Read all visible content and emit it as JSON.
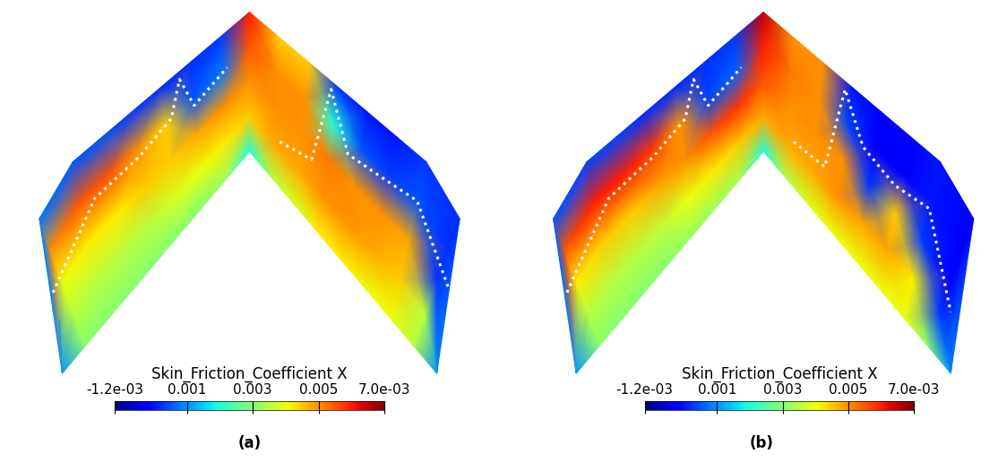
{
  "chart_data": [
    {
      "type": "heatmap",
      "caption": "(a)",
      "colorbar": {
        "label": "Skin_Friction_Coefficient X",
        "range": [
          -0.0012,
          0.007
        ],
        "ticks": [
          {
            "value": -0.0012,
            "label": "-1.2e-03"
          },
          0.001,
          0.003,
          0.005,
          {
            "value": 0.007,
            "label": "7.0e-03"
          }
        ]
      },
      "span": [
        -1,
        -0.875,
        -0.75,
        -0.625,
        -0.5,
        -0.375,
        -0.25,
        -0.125,
        0,
        0.125,
        0.25,
        0.375,
        0.5,
        0.625,
        0.75,
        0.875,
        1
      ],
      "chord": [
        0,
        0.25,
        0.5,
        0.75,
        1
      ],
      "cells": [
        [
          0.001,
          0.001,
          0.001,
          0.001,
          0.001
        ],
        [
          0.0008,
          0.005,
          0.004,
          0.0035,
          0.003
        ],
        [
          0.0005,
          0.0055,
          0.0042,
          0.0035,
          0.003
        ],
        [
          0.0005,
          0.0055,
          0.0042,
          0.0035,
          0.003
        ],
        [
          0.0003,
          0.005,
          0.0045,
          0.0035,
          0.003
        ],
        [
          0.0002,
          0.0045,
          0.0045,
          0.0038,
          0.003
        ],
        [
          0.0002,
          0.0005,
          0.0048,
          0.004,
          0.003
        ],
        [
          0.0003,
          0.0008,
          0.005,
          0.0042,
          0.0032
        ],
        [
          0.006,
          0.0055,
          0.005,
          0.0045,
          0.002
        ],
        [
          0.0045,
          0.005,
          0.005,
          0.0048,
          0.0035
        ],
        [
          0.0045,
          0.005,
          0.005,
          0.0048,
          0.0038
        ],
        [
          0.0003,
          0.002,
          0.0052,
          0.005,
          0.0042
        ],
        [
          0.0,
          0.0005,
          0.005,
          0.005,
          0.0042
        ],
        [
          0.0,
          0.0003,
          0.005,
          0.0048,
          0.004
        ],
        [
          0.0003,
          0.0005,
          0.0048,
          0.0045,
          0.004
        ],
        [
          0.0002,
          0.0002,
          0.0003,
          0.0035,
          0.0035
        ],
        [
          0.001,
          0.001,
          0.001,
          0.001,
          0.001
        ]
      ],
      "transition_lines": [
        [
          [
            -0.9,
            0.4
          ],
          [
            -0.7,
            0.3
          ],
          [
            -0.5,
            0.3
          ],
          [
            -0.35,
            0.25
          ],
          [
            -0.3,
            0.05
          ],
          [
            -0.25,
            0.3
          ],
          [
            -0.1,
            0.25
          ]
        ],
        [
          [
            0.15,
            0.7
          ],
          [
            0.3,
            0.6
          ],
          [
            0.35,
            0.05
          ],
          [
            0.45,
            0.35
          ],
          [
            0.6,
            0.3
          ],
          [
            0.75,
            0.25
          ],
          [
            0.9,
            0.35
          ]
        ]
      ]
    },
    {
      "type": "heatmap",
      "caption": "(b)",
      "colorbar": {
        "label": "Skin_Friction_Coefficient X",
        "range": [
          -0.0012,
          0.007
        ],
        "ticks": [
          {
            "value": -0.0012,
            "label": "-1.2e-03"
          },
          0.001,
          0.003,
          0.005,
          {
            "value": 0.007,
            "label": "7.0e-03"
          }
        ]
      },
      "span": [
        -1,
        -0.875,
        -0.75,
        -0.625,
        -0.5,
        -0.375,
        -0.25,
        -0.125,
        0,
        0.125,
        0.25,
        0.375,
        0.5,
        0.625,
        0.75,
        0.875,
        1
      ],
      "chord": [
        0,
        0.25,
        0.5,
        0.75,
        1
      ],
      "cells": [
        [
          0.001,
          0.001,
          0.001,
          0.001,
          0.001
        ],
        [
          0.0005,
          0.0055,
          0.0042,
          0.0035,
          0.003
        ],
        [
          0.0004,
          0.006,
          0.0045,
          0.0035,
          0.003
        ],
        [
          0.0004,
          0.006,
          0.0045,
          0.0035,
          0.003
        ],
        [
          0.0002,
          0.0058,
          0.0048,
          0.0036,
          0.003
        ],
        [
          0.0002,
          0.005,
          0.005,
          0.004,
          0.0032
        ],
        [
          0.0002,
          0.0004,
          0.0055,
          0.0042,
          0.0032
        ],
        [
          0.0003,
          0.0006,
          0.0058,
          0.0045,
          0.0033
        ],
        [
          0.0065,
          0.006,
          0.0055,
          0.0048,
          0.002
        ],
        [
          0.005,
          0.0052,
          0.005,
          0.0048,
          0.0035
        ],
        [
          0.005,
          0.005,
          0.005,
          0.0048,
          0.0038
        ],
        [
          0.0,
          0.0004,
          0.005,
          0.005,
          0.004
        ],
        [
          -0.0002,
          -0.0002,
          0.0003,
          0.0048,
          0.004
        ],
        [
          -0.0002,
          -0.0002,
          0.0045,
          0.0048,
          0.004
        ],
        [
          0.0,
          0.0,
          0.0003,
          0.0042,
          0.004
        ],
        [
          -0.0002,
          -0.0002,
          -0.0002,
          0.0003,
          0.003
        ],
        [
          0.001,
          0.001,
          0.001,
          0.001,
          0.001
        ]
      ],
      "transition_lines": [
        [
          [
            -0.9,
            0.4
          ],
          [
            -0.7,
            0.3
          ],
          [
            -0.5,
            0.3
          ],
          [
            -0.35,
            0.25
          ],
          [
            -0.3,
            0.05
          ],
          [
            -0.25,
            0.3
          ],
          [
            -0.1,
            0.25
          ]
        ],
        [
          [
            0.15,
            0.7
          ],
          [
            0.3,
            0.65
          ],
          [
            0.35,
            0.05
          ],
          [
            0.45,
            0.3
          ],
          [
            0.6,
            0.35
          ],
          [
            0.75,
            0.3
          ],
          [
            0.9,
            0.6
          ]
        ]
      ]
    }
  ]
}
